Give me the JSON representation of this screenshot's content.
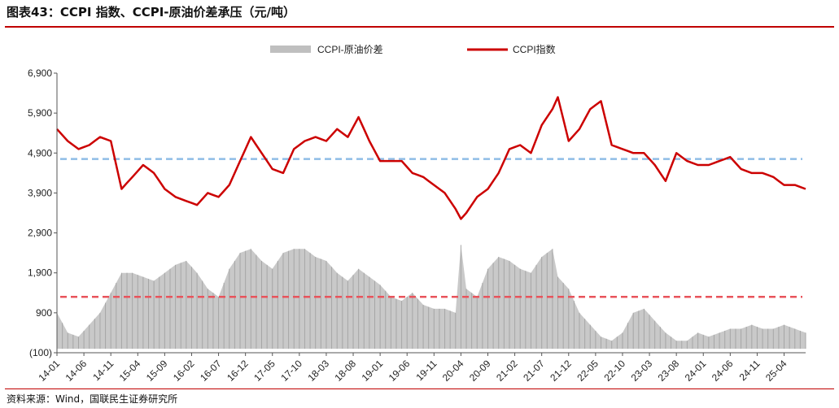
{
  "header": {
    "title": "图表43：CCPI 指数、CCPI-原油价差承压（元/吨）"
  },
  "footer": {
    "source": "资料来源：Wind，国联民生证券研究所"
  },
  "colors": {
    "ccpi_line": "#cc0000",
    "spread_area": "#bfbfbf",
    "ccpi_ref": "#8fbde6",
    "spread_ref": "#e8545c",
    "rule": "#c00000"
  },
  "chart_data": {
    "type": "line",
    "ylim": [
      -100,
      6900
    ],
    "yticks": [
      -100,
      900,
      1900,
      2900,
      3900,
      4900,
      5900,
      6900
    ],
    "ytick_labels": [
      "(100)",
      "900",
      "1,900",
      "2,900",
      "3,900",
      "4,900",
      "5,900",
      "6,900"
    ],
    "xtick_labels": [
      "14-01",
      "14-06",
      "14-11",
      "15-04",
      "15-09",
      "16-02",
      "16-07",
      "16-12",
      "17-05",
      "17-10",
      "18-03",
      "18-08",
      "19-01",
      "19-06",
      "19-11",
      "20-04",
      "20-09",
      "21-02",
      "21-07",
      "21-12",
      "22-05",
      "22-10",
      "23-03",
      "23-08",
      "24-01",
      "24-06",
      "24-11",
      "25-04"
    ],
    "x_range": [
      "2014-01",
      "2025-08"
    ],
    "legend_position": "top-center",
    "series": [
      {
        "name": "CCPI-原油价差",
        "kind": "area",
        "dates": [
          "2014-01",
          "2014-03",
          "2014-05",
          "2014-07",
          "2014-09",
          "2014-11",
          "2015-01",
          "2015-03",
          "2015-05",
          "2015-07",
          "2015-09",
          "2015-11",
          "2016-01",
          "2016-03",
          "2016-05",
          "2016-07",
          "2016-09",
          "2016-11",
          "2017-01",
          "2017-03",
          "2017-05",
          "2017-07",
          "2017-09",
          "2017-11",
          "2018-01",
          "2018-03",
          "2018-05",
          "2018-07",
          "2018-09",
          "2018-11",
          "2019-01",
          "2019-03",
          "2019-05",
          "2019-07",
          "2019-09",
          "2019-11",
          "2020-01",
          "2020-03",
          "2020-04",
          "2020-05",
          "2020-07",
          "2020-09",
          "2020-11",
          "2021-01",
          "2021-03",
          "2021-05",
          "2021-07",
          "2021-09",
          "2021-10",
          "2021-12",
          "2022-02",
          "2022-04",
          "2022-06",
          "2022-08",
          "2022-10",
          "2022-12",
          "2023-02",
          "2023-04",
          "2023-06",
          "2023-08",
          "2023-10",
          "2023-12",
          "2024-02",
          "2024-04",
          "2024-06",
          "2024-08",
          "2024-10",
          "2024-12",
          "2025-02",
          "2025-04",
          "2025-06",
          "2025-08"
        ],
        "values": [
          900,
          400,
          300,
          600,
          900,
          1400,
          1900,
          1900,
          1800,
          1700,
          1900,
          2100,
          2200,
          1900,
          1500,
          1300,
          2000,
          2400,
          2500,
          2200,
          2000,
          2400,
          2500,
          2500,
          2300,
          2200,
          1900,
          1700,
          2000,
          1800,
          1600,
          1300,
          1200,
          1400,
          1100,
          1000,
          1000,
          900,
          2600,
          1500,
          1300,
          2000,
          2300,
          2200,
          2000,
          1900,
          2300,
          2500,
          1800,
          1500,
          900,
          600,
          300,
          200,
          400,
          900,
          1000,
          700,
          400,
          200,
          200,
          400,
          300,
          400,
          500,
          500,
          600,
          500,
          500,
          600,
          500,
          400
        ]
      },
      {
        "name": "CCPI指数",
        "kind": "line",
        "dates": [
          "2014-01",
          "2014-03",
          "2014-05",
          "2014-07",
          "2014-09",
          "2014-11",
          "2015-01",
          "2015-03",
          "2015-05",
          "2015-07",
          "2015-09",
          "2015-11",
          "2016-01",
          "2016-03",
          "2016-05",
          "2016-07",
          "2016-09",
          "2016-11",
          "2017-01",
          "2017-03",
          "2017-05",
          "2017-07",
          "2017-09",
          "2017-11",
          "2018-01",
          "2018-03",
          "2018-05",
          "2018-07",
          "2018-09",
          "2018-11",
          "2019-01",
          "2019-03",
          "2019-05",
          "2019-07",
          "2019-09",
          "2019-11",
          "2020-01",
          "2020-03",
          "2020-04",
          "2020-05",
          "2020-07",
          "2020-09",
          "2020-11",
          "2021-01",
          "2021-03",
          "2021-05",
          "2021-07",
          "2021-09",
          "2021-10",
          "2021-12",
          "2022-02",
          "2022-04",
          "2022-06",
          "2022-08",
          "2022-10",
          "2022-12",
          "2023-02",
          "2023-04",
          "2023-06",
          "2023-08",
          "2023-10",
          "2023-12",
          "2024-02",
          "2024-04",
          "2024-06",
          "2024-08",
          "2024-10",
          "2024-12",
          "2025-02",
          "2025-04",
          "2025-06",
          "2025-08"
        ],
        "values": [
          5500,
          5200,
          5000,
          5100,
          5300,
          5200,
          4000,
          4300,
          4600,
          4400,
          4000,
          3800,
          3700,
          3600,
          3900,
          3800,
          4100,
          4700,
          5300,
          4900,
          4500,
          4400,
          5000,
          5200,
          5300,
          5200,
          5500,
          5300,
          5800,
          5200,
          4700,
          4700,
          4700,
          4400,
          4300,
          4100,
          3900,
          3500,
          3250,
          3400,
          3800,
          4000,
          4400,
          5000,
          5100,
          4900,
          5600,
          6000,
          6300,
          5200,
          5500,
          6000,
          6200,
          5100,
          5000,
          4900,
          4900,
          4600,
          4200,
          4900,
          4700,
          4600,
          4600,
          4700,
          4800,
          4500,
          4400,
          4400,
          4300,
          4100,
          4100,
          4000
        ]
      }
    ],
    "reference_lines": [
      {
        "value": 4750,
        "color": "#8fbde6",
        "style": "dashed"
      },
      {
        "value": 1300,
        "color": "#e8545c",
        "style": "dashed"
      }
    ]
  }
}
